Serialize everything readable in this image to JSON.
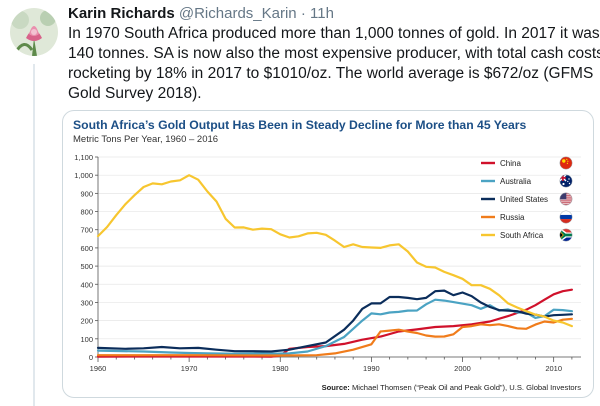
{
  "tweet": {
    "display_name": "Karin Richards",
    "handle": "@Richards_Karin",
    "separator": "·",
    "time": "11h",
    "text_lines": [
      "In 1970 South Africa produced more than 1,000 tonnes of gold. In 2017 it was",
      "140 tonnes. SA is now also the most expensive producer, with total cash costs",
      "rocketing by 18% in 2017 to $1010/oz. The world average is $672/oz (GFMS",
      "Gold Survey 2018)."
    ]
  },
  "colors": {
    "China": "#d0112b",
    "Australia": "#4ba3c3",
    "United States": "#0b2d5b",
    "Russia": "#f07c1b",
    "South Africa": "#f7c62f",
    "title": "#1c4f86"
  },
  "chart_data": {
    "type": "line",
    "title": "South Africa’s Gold Output Has Been in Steady Decline for More than 45 Years",
    "subtitle": "Metric Tons Per Year, 1960 – 2016",
    "source_label": "Source:",
    "source_text": "Michael Thomsen (“Peak Oil and Peak Gold”), U.S. Global Investors",
    "xlim": [
      1960,
      2013
    ],
    "ylim": [
      0,
      1100
    ],
    "x_ticks": [
      "1960",
      "1970",
      "1980",
      "1990",
      "2000",
      "2010"
    ],
    "y_ticks": [
      "0",
      "100",
      "200",
      "300",
      "400",
      "500",
      "600",
      "700",
      "800",
      "900",
      "1,000",
      "1,100"
    ],
    "legend_position": "right",
    "series": [
      {
        "name": "China",
        "flag_icon": "china-flag-icon",
        "points": [
          [
            1960,
            2
          ],
          [
            1970,
            3
          ],
          [
            1979,
            2
          ],
          [
            1980,
            7
          ],
          [
            1981,
            45
          ],
          [
            1983,
            55
          ],
          [
            1985,
            60
          ],
          [
            1987,
            72
          ],
          [
            1989,
            95
          ],
          [
            1991,
            112
          ],
          [
            1993,
            140
          ],
          [
            1995,
            152
          ],
          [
            1997,
            165
          ],
          [
            1999,
            170
          ],
          [
            2001,
            180
          ],
          [
            2003,
            195
          ],
          [
            2005,
            225
          ],
          [
            2007,
            260
          ],
          [
            2008,
            285
          ],
          [
            2009,
            315
          ],
          [
            2010,
            345
          ],
          [
            2011,
            362
          ],
          [
            2012,
            370
          ]
        ]
      },
      {
        "name": "Australia",
        "flag_icon": "australia-flag-icon",
        "points": [
          [
            1960,
            35
          ],
          [
            1962,
            33
          ],
          [
            1965,
            30
          ],
          [
            1968,
            25
          ],
          [
            1970,
            22
          ],
          [
            1972,
            20
          ],
          [
            1975,
            18
          ],
          [
            1977,
            20
          ],
          [
            1979,
            18
          ],
          [
            1981,
            20
          ],
          [
            1983,
            30
          ],
          [
            1985,
            60
          ],
          [
            1987,
            110
          ],
          [
            1988,
            155
          ],
          [
            1989,
            200
          ],
          [
            1990,
            240
          ],
          [
            1991,
            235
          ],
          [
            1992,
            245
          ],
          [
            1993,
            248
          ],
          [
            1994,
            255
          ],
          [
            1995,
            256
          ],
          [
            1996,
            290
          ],
          [
            1997,
            315
          ],
          [
            1998,
            310
          ],
          [
            1999,
            302
          ],
          [
            2001,
            285
          ],
          [
            2002,
            265
          ],
          [
            2003,
            285
          ],
          [
            2004,
            255
          ],
          [
            2005,
            262
          ],
          [
            2006,
            245
          ],
          [
            2007,
            245
          ],
          [
            2008,
            215
          ],
          [
            2009,
            225
          ],
          [
            2010,
            260
          ],
          [
            2011,
            258
          ],
          [
            2012,
            252
          ]
        ]
      },
      {
        "name": "United States",
        "flag_icon": "united-states-flag-icon",
        "points": [
          [
            1960,
            50
          ],
          [
            1963,
            45
          ],
          [
            1965,
            48
          ],
          [
            1967,
            55
          ],
          [
            1969,
            48
          ],
          [
            1971,
            50
          ],
          [
            1973,
            40
          ],
          [
            1975,
            32
          ],
          [
            1977,
            32
          ],
          [
            1979,
            30
          ],
          [
            1981,
            40
          ],
          [
            1983,
            60
          ],
          [
            1985,
            80
          ],
          [
            1987,
            150
          ],
          [
            1988,
            200
          ],
          [
            1989,
            265
          ],
          [
            1990,
            295
          ],
          [
            1991,
            295
          ],
          [
            1992,
            330
          ],
          [
            1993,
            330
          ],
          [
            1994,
            325
          ],
          [
            1995,
            318
          ],
          [
            1996,
            325
          ],
          [
            1997,
            362
          ],
          [
            1998,
            365
          ],
          [
            1999,
            340
          ],
          [
            2000,
            355
          ],
          [
            2001,
            335
          ],
          [
            2002,
            300
          ],
          [
            2003,
            275
          ],
          [
            2004,
            258
          ],
          [
            2005,
            255
          ],
          [
            2006,
            252
          ],
          [
            2007,
            238
          ],
          [
            2008,
            233
          ],
          [
            2009,
            222
          ],
          [
            2010,
            230
          ],
          [
            2011,
            232
          ],
          [
            2012,
            235
          ]
        ]
      },
      {
        "name": "Russia",
        "flag_icon": "russia-flag-icon",
        "points": [
          [
            1960,
            10
          ],
          [
            1970,
            10
          ],
          [
            1980,
            8
          ],
          [
            1984,
            10
          ],
          [
            1986,
            20
          ],
          [
            1988,
            40
          ],
          [
            1990,
            70
          ],
          [
            1991,
            140
          ],
          [
            1992,
            145
          ],
          [
            1993,
            150
          ],
          [
            1994,
            140
          ],
          [
            1995,
            132
          ],
          [
            1996,
            118
          ],
          [
            1997,
            112
          ],
          [
            1998,
            113
          ],
          [
            1999,
            125
          ],
          [
            2000,
            165
          ],
          [
            2001,
            170
          ],
          [
            2002,
            180
          ],
          [
            2003,
            175
          ],
          [
            2004,
            180
          ],
          [
            2005,
            170
          ],
          [
            2006,
            158
          ],
          [
            2007,
            155
          ],
          [
            2008,
            178
          ],
          [
            2009,
            195
          ],
          [
            2010,
            190
          ],
          [
            2011,
            205
          ],
          [
            2012,
            210
          ]
        ]
      },
      {
        "name": "South Africa",
        "flag_icon": "south-africa-flag-icon",
        "points": [
          [
            1960,
            665
          ],
          [
            1961,
            715
          ],
          [
            1962,
            780
          ],
          [
            1963,
            840
          ],
          [
            1964,
            890
          ],
          [
            1965,
            935
          ],
          [
            1966,
            955
          ],
          [
            1967,
            950
          ],
          [
            1968,
            965
          ],
          [
            1969,
            972
          ],
          [
            1970,
            1000
          ],
          [
            1971,
            975
          ],
          [
            1972,
            910
          ],
          [
            1973,
            855
          ],
          [
            1974,
            760
          ],
          [
            1975,
            712
          ],
          [
            1976,
            713
          ],
          [
            1977,
            700
          ],
          [
            1978,
            706
          ],
          [
            1979,
            703
          ],
          [
            1980,
            675
          ],
          [
            1981,
            657
          ],
          [
            1982,
            664
          ],
          [
            1983,
            680
          ],
          [
            1984,
            683
          ],
          [
            1985,
            672
          ],
          [
            1986,
            640
          ],
          [
            1987,
            605
          ],
          [
            1988,
            620
          ],
          [
            1989,
            605
          ],
          [
            1990,
            602
          ],
          [
            1991,
            600
          ],
          [
            1992,
            614
          ],
          [
            1993,
            620
          ],
          [
            1994,
            580
          ],
          [
            1995,
            520
          ],
          [
            1996,
            496
          ],
          [
            1997,
            492
          ],
          [
            1998,
            468
          ],
          [
            1999,
            450
          ],
          [
            2000,
            430
          ],
          [
            2001,
            395
          ],
          [
            2002,
            395
          ],
          [
            2003,
            375
          ],
          [
            2004,
            340
          ],
          [
            2005,
            295
          ],
          [
            2006,
            272
          ],
          [
            2007,
            252
          ],
          [
            2008,
            233
          ],
          [
            2009,
            222
          ],
          [
            2010,
            200
          ],
          [
            2011,
            190
          ],
          [
            2012,
            170
          ]
        ]
      }
    ]
  }
}
